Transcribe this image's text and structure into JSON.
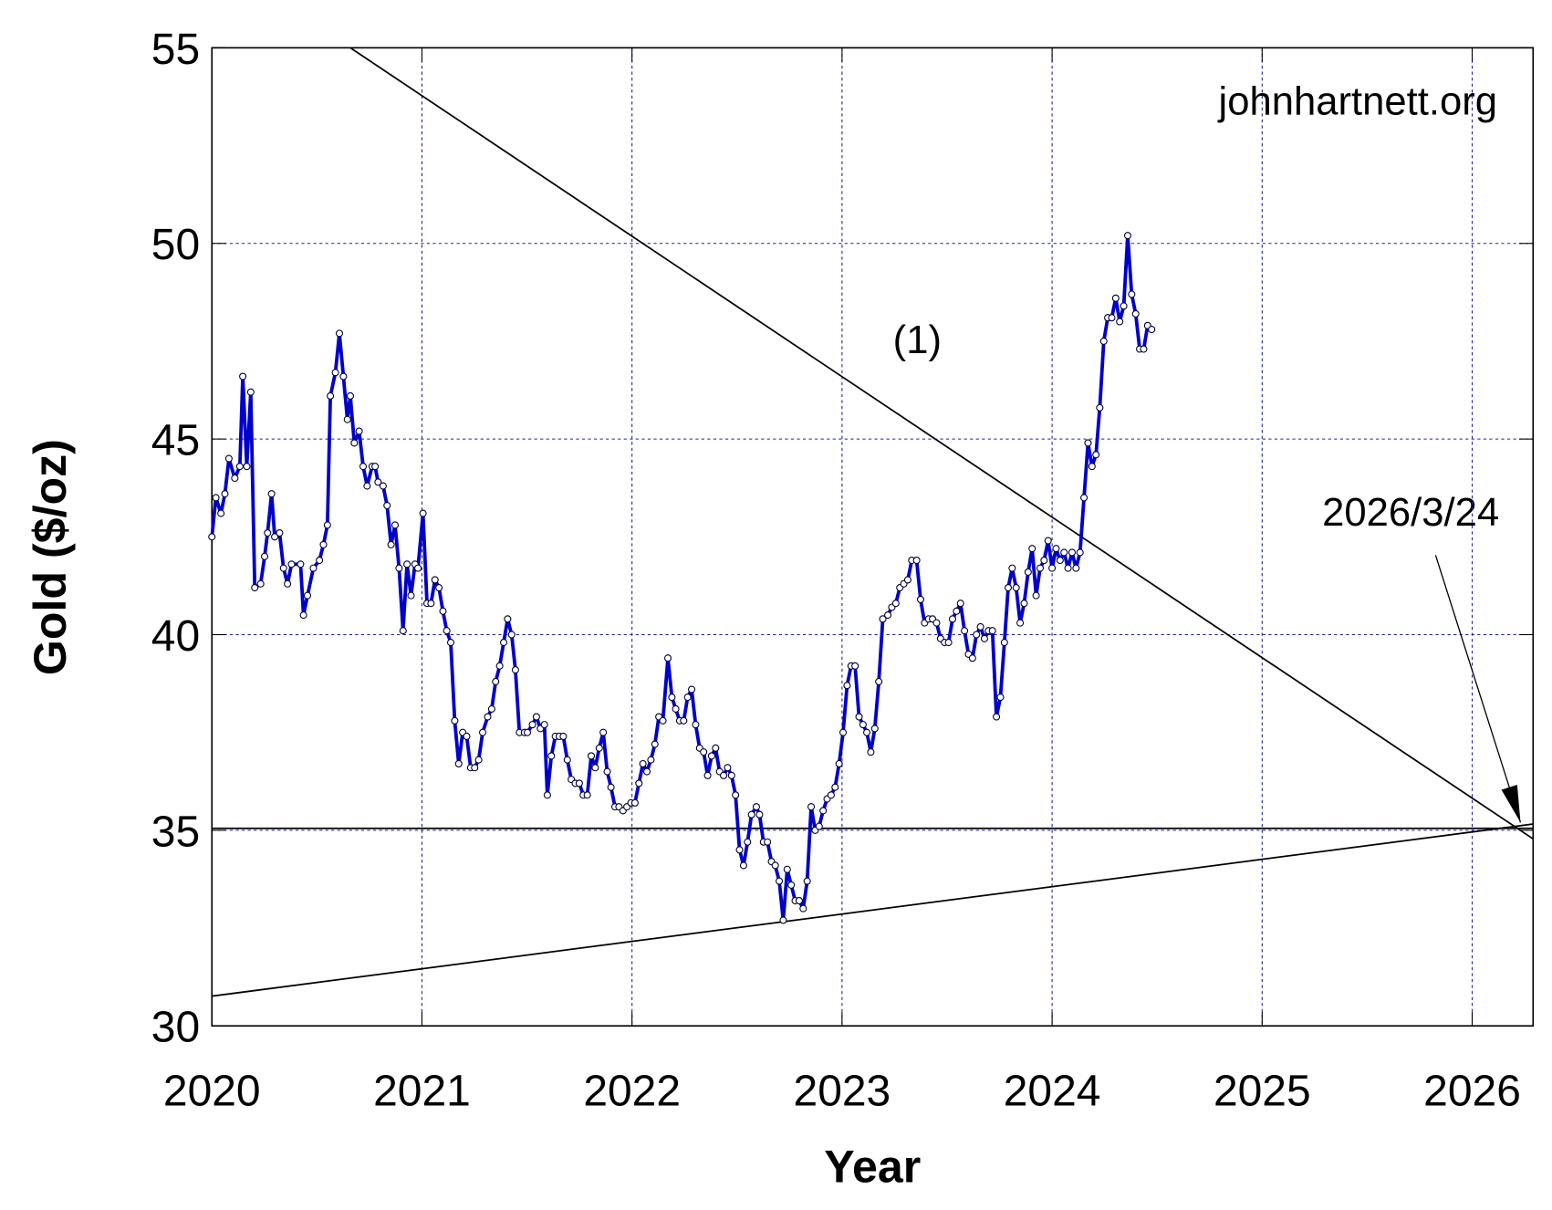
{
  "chart_data": {
    "type": "line",
    "xlabel": "Year",
    "ylabel": "Gold ($/oz)",
    "xlim": [
      2020,
      2026.29
    ],
    "xticks": [
      2020,
      2021,
      2022,
      2023,
      2024,
      2025,
      2026
    ],
    "ylim": [
      30,
      55
    ],
    "yticks": [
      30,
      35,
      40,
      45,
      50,
      55
    ],
    "grid": true,
    "color": "#0000cc",
    "x": [
      2020.0,
      2020.019,
      2020.043,
      2020.062,
      2020.081,
      2020.109,
      2020.133,
      2020.147,
      2020.166,
      2020.185,
      2020.204,
      2020.232,
      2020.251,
      2020.265,
      2020.284,
      2020.299,
      2020.322,
      2020.341,
      2020.36,
      2020.379,
      2020.422,
      2020.436,
      2020.455,
      2020.483,
      2020.512,
      2020.531,
      2020.55,
      2020.564,
      2020.588,
      2020.607,
      2020.626,
      2020.645,
      2020.659,
      2020.678,
      2020.701,
      2020.72,
      2020.739,
      2020.763,
      2020.777,
      2020.791,
      2020.815,
      2020.834,
      2020.853,
      2020.872,
      2020.891,
      2020.91,
      2020.929,
      2020.948,
      2020.967,
      2020.981,
      2021.005,
      2021.024,
      2021.043,
      2021.062,
      2021.081,
      2021.1,
      2021.118,
      2021.137,
      2021.156,
      2021.175,
      2021.194,
      2021.213,
      2021.232,
      2021.251,
      2021.27,
      2021.289,
      2021.313,
      2021.332,
      2021.351,
      2021.37,
      2021.389,
      2021.408,
      2021.427,
      2021.445,
      2021.464,
      2021.488,
      2021.502,
      2021.526,
      2021.545,
      2021.564,
      2021.583,
      2021.597,
      2021.616,
      2021.635,
      2021.654,
      2021.673,
      2021.692,
      2021.711,
      2021.73,
      2021.749,
      2021.768,
      2021.787,
      2021.806,
      2021.825,
      2021.844,
      2021.863,
      2021.882,
      2021.9,
      2021.919,
      2021.938,
      2021.957,
      2021.976,
      2021.995,
      2022.014,
      2022.033,
      2022.052,
      2022.071,
      2022.09,
      2022.109,
      2022.128,
      2022.147,
      2022.171,
      2022.19,
      2022.208,
      2022.227,
      2022.246,
      2022.265,
      2022.284,
      2022.303,
      2022.322,
      2022.341,
      2022.36,
      2022.379,
      2022.398,
      2022.417,
      2022.436,
      2022.455,
      2022.474,
      2022.493,
      2022.512,
      2022.531,
      2022.55,
      2022.569,
      2022.592,
      2022.607,
      2022.626,
      2022.645,
      2022.664,
      2022.682,
      2022.701,
      2022.72,
      2022.739,
      2022.758,
      2022.777,
      2022.796,
      2022.815,
      2022.834,
      2022.853,
      2022.872,
      2022.891,
      2022.91,
      2022.929,
      2022.948,
      2022.967,
      2022.986,
      2023.005,
      2023.024,
      2023.043,
      2023.062,
      2023.081,
      2023.1,
      2023.118,
      2023.137,
      2023.156,
      2023.175,
      2023.194,
      2023.218,
      2023.237,
      2023.256,
      2023.275,
      2023.294,
      2023.313,
      2023.332,
      2023.355,
      2023.374,
      2023.393,
      2023.412,
      2023.431,
      2023.45,
      2023.469,
      2023.488,
      2023.507,
      2023.526,
      2023.545,
      2023.564,
      2023.583,
      2023.602,
      2023.621,
      2023.64,
      2023.659,
      2023.678,
      2023.697,
      2023.716,
      2023.735,
      2023.754,
      2023.773,
      2023.791,
      2023.81,
      2023.829,
      2023.848,
      2023.867,
      2023.886,
      2023.905,
      2023.924,
      2023.943,
      2023.962,
      2023.981,
      2024.0,
      2024.019,
      2024.038,
      2024.057,
      2024.076,
      2024.095,
      2024.114,
      2024.133,
      2024.152,
      2024.171,
      2024.19,
      2024.209,
      2024.227,
      2024.246,
      2024.265,
      2024.284,
      2024.303,
      2024.322,
      2024.341,
      2024.36,
      2024.379,
      2024.398,
      2024.417,
      2024.436,
      2024.455,
      2024.474
    ],
    "values": [
      42.5,
      43.5,
      43.1,
      43.6,
      44.5,
      44.0,
      44.3,
      46.6,
      44.3,
      46.2,
      41.2,
      41.3,
      42.0,
      42.6,
      43.6,
      42.5,
      42.6,
      41.7,
      41.3,
      41.8,
      41.8,
      40.5,
      41.0,
      41.7,
      41.9,
      42.3,
      42.8,
      46.1,
      46.7,
      47.7,
      46.6,
      45.5,
      46.1,
      44.9,
      45.2,
      44.3,
      43.8,
      44.3,
      44.3,
      43.9,
      43.8,
      43.3,
      42.3,
      42.8,
      41.7,
      40.1,
      41.8,
      41.0,
      41.8,
      41.7,
      43.1,
      40.8,
      40.8,
      41.4,
      41.2,
      40.6,
      40.1,
      39.8,
      37.8,
      36.7,
      37.5,
      37.4,
      36.6,
      36.6,
      36.8,
      37.5,
      37.9,
      38.1,
      38.8,
      39.2,
      39.8,
      40.4,
      40.0,
      39.1,
      37.5,
      37.5,
      37.5,
      37.7,
      37.9,
      37.6,
      37.7,
      35.9,
      36.9,
      37.4,
      37.4,
      37.4,
      36.8,
      36.3,
      36.2,
      36.2,
      35.9,
      35.9,
      36.9,
      36.6,
      37.1,
      37.5,
      36.5,
      36.1,
      35.6,
      35.6,
      35.5,
      35.6,
      35.7,
      35.7,
      36.2,
      36.7,
      36.5,
      36.8,
      37.2,
      37.9,
      37.8,
      39.4,
      38.4,
      38.1,
      37.8,
      37.8,
      38.4,
      38.6,
      37.7,
      37.1,
      37.0,
      36.4,
      36.9,
      37.1,
      36.5,
      36.4,
      36.6,
      36.4,
      35.9,
      34.5,
      34.1,
      34.7,
      35.4,
      35.6,
      35.4,
      34.7,
      34.7,
      34.2,
      34.1,
      33.7,
      32.7,
      34.0,
      33.6,
      33.2,
      33.2,
      33.0,
      33.7,
      35.6,
      35.0,
      35.1,
      35.5,
      35.8,
      35.9,
      36.1,
      36.7,
      37.5,
      38.7,
      39.2,
      39.2,
      37.9,
      37.7,
      37.5,
      37.0,
      37.6,
      38.8,
      40.4,
      40.5,
      40.7,
      40.8,
      41.2,
      41.3,
      41.4,
      41.9,
      41.9,
      40.9,
      40.3,
      40.4,
      40.4,
      40.3,
      39.9,
      39.8,
      39.8,
      40.4,
      40.6,
      40.8,
      40.1,
      39.5,
      39.4,
      40.0,
      40.2,
      39.9,
      40.1,
      40.1,
      37.9,
      38.4,
      39.8,
      41.2,
      41.7,
      41.2,
      40.3,
      40.8,
      41.6,
      42.2,
      41.0,
      41.7,
      41.9,
      42.4,
      41.7,
      42.2,
      41.9,
      42.1,
      41.7,
      42.1,
      41.7,
      42.1,
      43.5,
      44.9,
      44.3,
      44.6,
      45.8,
      47.5,
      48.1,
      48.1,
      48.6,
      48.0,
      48.4,
      50.2,
      48.7,
      48.2,
      47.3,
      47.3,
      47.9,
      47.8
    ],
    "lines": [
      {
        "x": [
          2020.659,
          2026.29
        ],
        "y": [
          55,
          34.78
        ]
      },
      {
        "x": [
          2020,
          2026.29
        ],
        "y": [
          30.76,
          35.16
        ]
      },
      {
        "x": [
          2020,
          2026.29
        ],
        "y": [
          35.05,
          35.05
        ]
      }
    ],
    "annotations": [
      {
        "text": "johnhartnett.org"
      },
      {
        "text": "(1)"
      },
      {
        "text": "2026/3/24",
        "xy": [
          2026.23,
          35.2
        ]
      }
    ]
  }
}
